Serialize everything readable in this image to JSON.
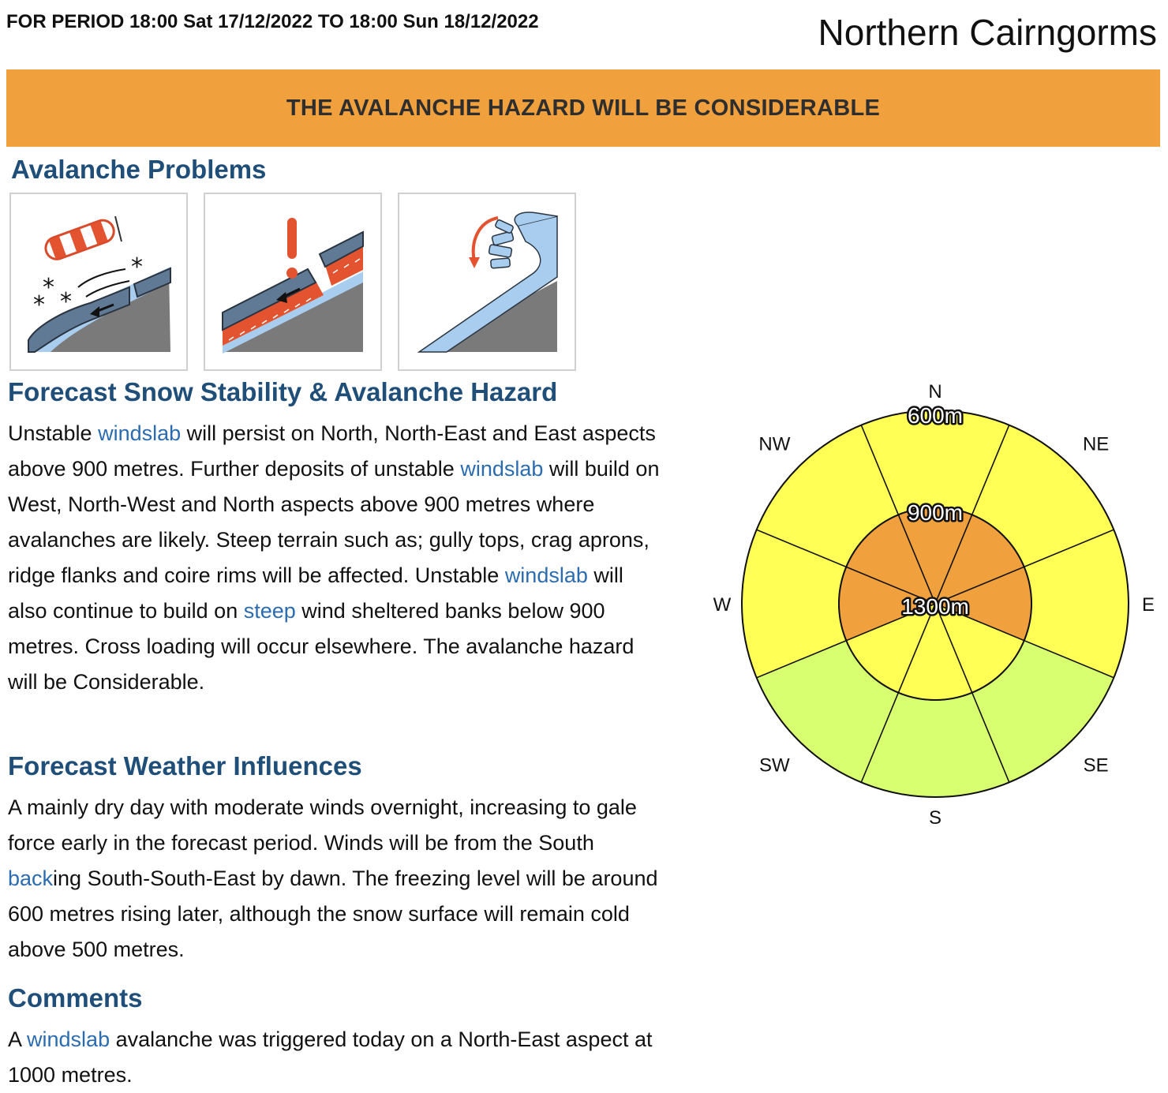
{
  "header": {
    "period": "FOR PERIOD 18:00 Sat 17/12/2022 TO 18:00 Sun 18/12/2022",
    "area": "Northern Cairngorms"
  },
  "hazard": {
    "banner": "THE AVALANCHE HAZARD WILL BE CONSIDERABLE",
    "color": "#f0a03c"
  },
  "problems": {
    "heading": "Avalanche Problems",
    "icons": [
      "windslab-windsock-icon",
      "persistent-weak-layer-icon",
      "cornice-collapse-icon"
    ]
  },
  "stability": {
    "heading": "Forecast Snow Stability & Avalanche Hazard",
    "segments": [
      {
        "text": "Unstable ",
        "link": false
      },
      {
        "text": "windslab",
        "link": true
      },
      {
        "text": " will persist on North, North-East and East aspects above 900 metres. Further deposits of unstable ",
        "link": false
      },
      {
        "text": "windslab",
        "link": true
      },
      {
        "text": " will build on West, North-West and North aspects above 900 metres where avalanches are likely. Steep terrain such as; gully tops, crag aprons, ridge flanks and coire rims will be affected. Unstable ",
        "link": false
      },
      {
        "text": "windslab",
        "link": true
      },
      {
        "text": " will also continue to build on ",
        "link": false
      },
      {
        "text": "steep",
        "link": true
      },
      {
        "text": " wind sheltered banks below 900 metres. Cross loading will occur elsewhere. The avalanche hazard will be Considerable.",
        "link": false
      }
    ]
  },
  "weather": {
    "heading": "Forecast Weather Influences",
    "segments": [
      {
        "text": "A mainly dry day with moderate winds overnight, increasing to gale force early in the forecast period. Winds will be from the South ",
        "link": false
      },
      {
        "text": "back",
        "link": true
      },
      {
        "text": "ing South-South-East by dawn. The freezing level will be around 600 metres rising later, although the snow surface will remain cold above 500 metres.",
        "link": false
      }
    ]
  },
  "comments": {
    "heading": "Comments",
    "segments": [
      {
        "text": "A ",
        "link": false
      },
      {
        "text": "windslab",
        "link": true
      },
      {
        "text": " avalanche was triggered today on a North-East aspect at 1000 metres.",
        "link": false
      }
    ]
  },
  "rose": {
    "directions": [
      "N",
      "NE",
      "E",
      "SE",
      "S",
      "SW",
      "W",
      "NW"
    ],
    "elevations": [
      "600m",
      "900m",
      "1300m"
    ],
    "hazard_colors": {
      "considerable": "#f0a03c",
      "moderate": "#ffff55",
      "low": "#d8ff70"
    },
    "outer_band": {
      "N": "moderate",
      "NE": "moderate",
      "E": "moderate",
      "SE": "low",
      "S": "low",
      "SW": "low",
      "W": "moderate",
      "NW": "moderate"
    },
    "inner_band": {
      "N": "considerable",
      "NE": "considerable",
      "E": "considerable",
      "SE": "moderate",
      "S": "moderate",
      "SW": "moderate",
      "W": "considerable",
      "NW": "considerable"
    }
  }
}
